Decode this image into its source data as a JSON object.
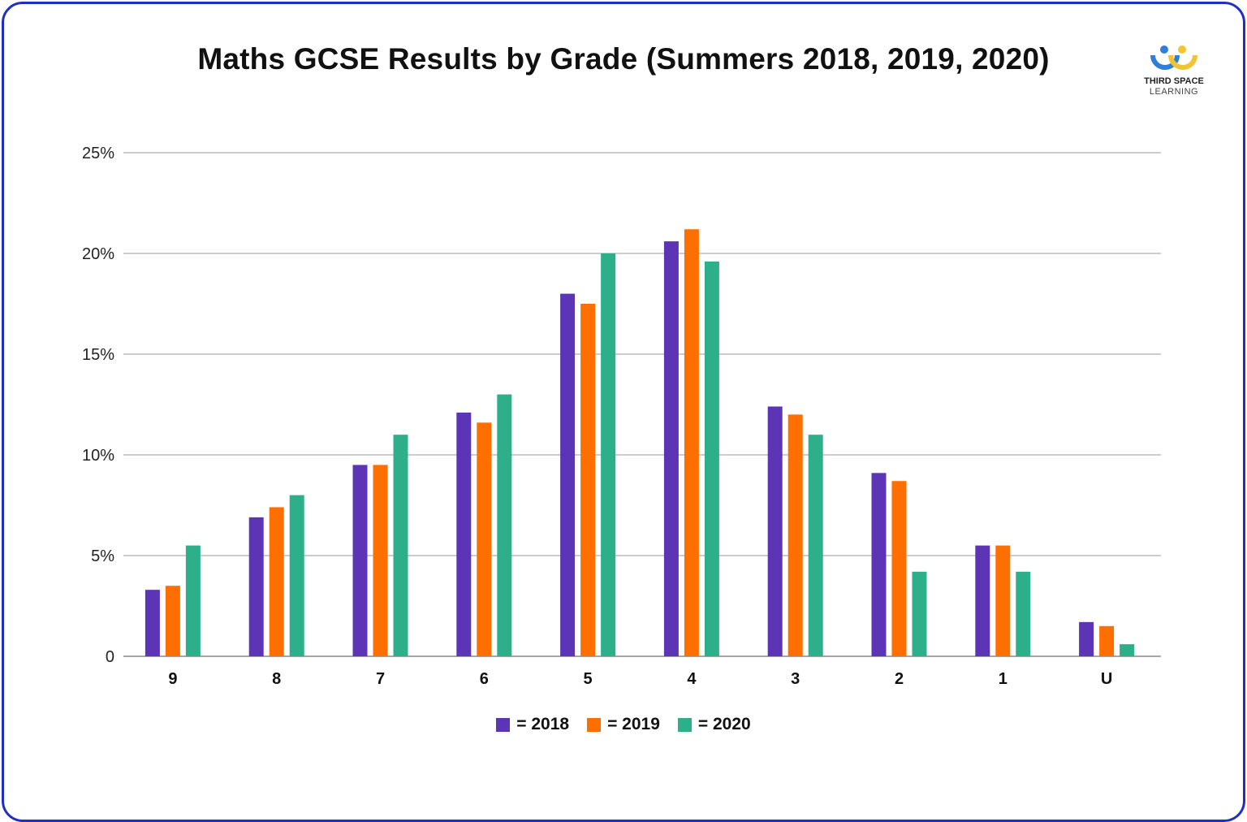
{
  "logo": {
    "line1": "THIRD SPACE",
    "line2": "LEARNING"
  },
  "legend": [
    {
      "label": "= 2018",
      "color": "#5b35b5"
    },
    {
      "label": "= 2019",
      "color": "#ff6f00"
    },
    {
      "label": "= 2020",
      "color": "#2db08a"
    }
  ],
  "chart_data": {
    "type": "bar",
    "title": "Maths GCSE Results by Grade (Summers 2018, 2019, 2020)",
    "xlabel": "",
    "ylabel": "",
    "categories": [
      "9",
      "8",
      "7",
      "6",
      "5",
      "4",
      "3",
      "2",
      "1",
      "U"
    ],
    "series": [
      {
        "name": "2018",
        "color": "#5b35b5",
        "values": [
          3.3,
          6.9,
          9.5,
          12.1,
          18.0,
          20.6,
          12.4,
          9.1,
          5.5,
          1.7
        ]
      },
      {
        "name": "2019",
        "color": "#ff6f00",
        "values": [
          3.5,
          7.4,
          9.5,
          11.6,
          17.5,
          21.2,
          12.0,
          8.7,
          5.5,
          1.5
        ]
      },
      {
        "name": "2020",
        "color": "#2db08a",
        "values": [
          5.5,
          8.0,
          11.0,
          13.0,
          20.0,
          19.6,
          11.0,
          4.2,
          4.2,
          0.6
        ]
      }
    ],
    "ylim": [
      0,
      25
    ],
    "y_ticks": [
      {
        "value": 0,
        "label": "0"
      },
      {
        "value": 5,
        "label": "5%"
      },
      {
        "value": 10,
        "label": "10%"
      },
      {
        "value": 15,
        "label": "15%"
      },
      {
        "value": 20,
        "label": "20%"
      },
      {
        "value": 25,
        "label": "25%"
      }
    ],
    "grid": true,
    "legend_position": "bottom"
  }
}
